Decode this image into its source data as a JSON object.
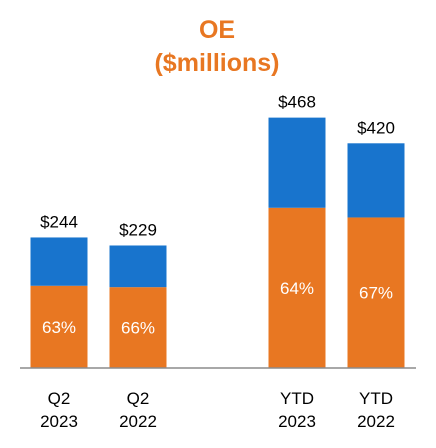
{
  "title_line1": "OE",
  "title_line2": "($millions)",
  "colors": {
    "title": "#E87722",
    "orange": "#E87722",
    "blue": "#1874CD",
    "axis": "#8C8C8C"
  },
  "chart_data": {
    "type": "bar",
    "stacked": true,
    "title": "OE ($millions)",
    "categories": [
      "Q2 2023",
      "Q2 2022",
      "YTD 2023",
      "YTD 2022"
    ],
    "category_labels": [
      [
        "Q2",
        "2023"
      ],
      [
        "Q2",
        "2022"
      ],
      [
        "YTD",
        "2023"
      ],
      [
        "YTD",
        "2022"
      ]
    ],
    "totals": [
      244,
      229,
      468,
      420
    ],
    "total_labels": [
      "$244",
      "$229",
      "$468",
      "$420"
    ],
    "percent_labels": [
      "63%",
      "66%",
      "64%",
      "67%"
    ],
    "series": [
      {
        "color": "orange",
        "values": [
          153.7,
          151.1,
          299.5,
          281.4
        ]
      },
      {
        "color": "blue",
        "values": [
          90.3,
          77.9,
          168.5,
          138.6
        ]
      }
    ],
    "ylim": [
      0,
      500
    ],
    "grid": false,
    "legend": "none"
  }
}
